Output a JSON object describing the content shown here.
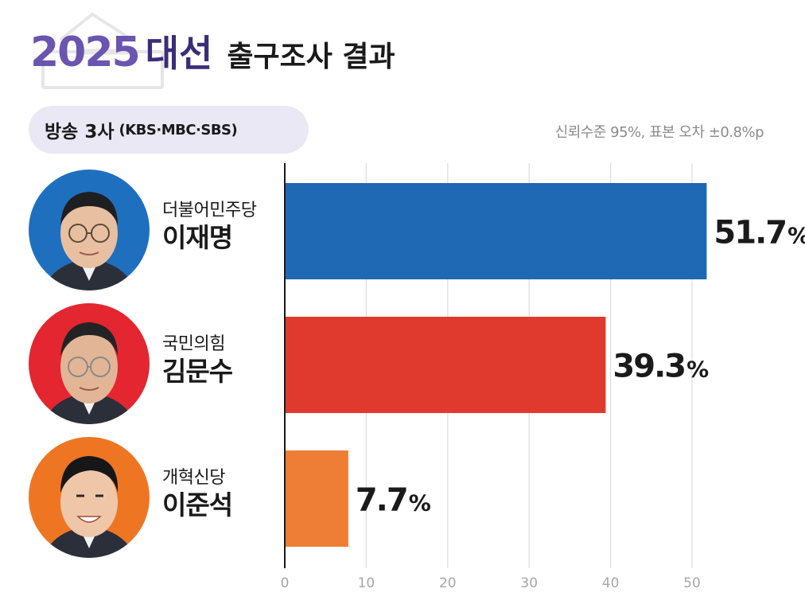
{
  "title": {
    "year": "2025",
    "word": "대선",
    "rest": "출구조사 결과"
  },
  "source": {
    "main": "방송 3사",
    "sub": "(KBS·MBC·SBS)"
  },
  "confidence_note": "신뢰수준 95%, 표본 오차 ±0.8%p",
  "candidates": [
    {
      "party": "더불어민주당",
      "name": "이재명",
      "color": "#1f68b3",
      "avatar_bg": "#1f6fbf"
    },
    {
      "party": "국민의힘",
      "name": "김문수",
      "color": "#e0392e",
      "avatar_bg": "#e3262f"
    },
    {
      "party": "개혁신당",
      "name": "이준석",
      "color": "#ee7d35",
      "avatar_bg": "#ee7623"
    }
  ],
  "chart_data": {
    "type": "bar",
    "orientation": "horizontal",
    "categories": [
      "이재명",
      "김문수",
      "이준석"
    ],
    "values": [
      51.7,
      39.3,
      7.7
    ],
    "value_labels": [
      "51.7",
      "39.3",
      "7.7"
    ],
    "value_suffix": "%",
    "colors": [
      "#1f68b3",
      "#e0392e",
      "#ee7d35"
    ],
    "xlim": [
      0,
      52
    ],
    "xticks": [
      0,
      10,
      20,
      30,
      40,
      50
    ],
    "grid": true
  }
}
